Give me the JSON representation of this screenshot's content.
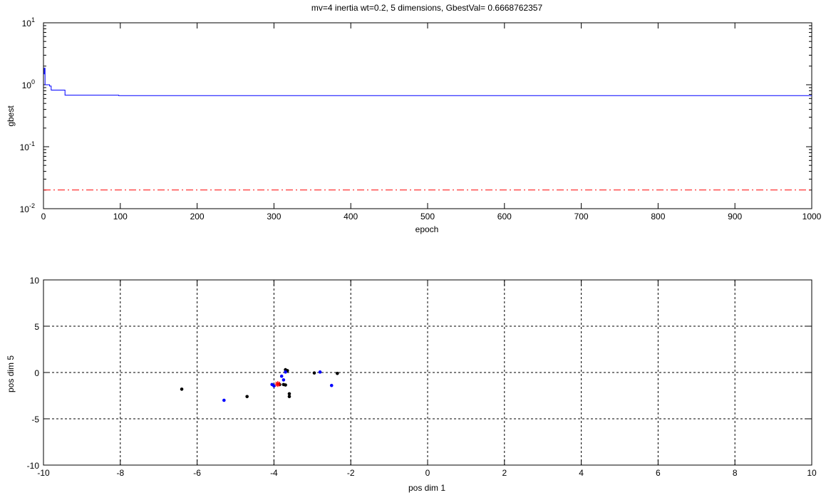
{
  "chart_data": [
    {
      "type": "line",
      "title": "mv=4 inertia wt=0.2, 5 dimensions, GbestVal= 0.6668762357",
      "xlabel": "epoch",
      "ylabel": "gbest",
      "xlim": [
        0,
        1000
      ],
      "ylim": [
        0.01,
        10
      ],
      "yscale": "log",
      "grid": false,
      "x_ticks": [
        0,
        100,
        200,
        300,
        400,
        500,
        600,
        700,
        800,
        900,
        1000
      ],
      "y_ticks": [
        {
          "value": 0.01,
          "base": "10",
          "exp": "-2"
        },
        {
          "value": 0.1,
          "base": "10",
          "exp": "-1"
        },
        {
          "value": 1,
          "base": "10",
          "exp": "0"
        },
        {
          "value": 10,
          "base": "10",
          "exp": "1"
        }
      ],
      "series": [
        {
          "color": "#0000ff",
          "style": "solid",
          "x": [
            0,
            1,
            1,
            2,
            2,
            8,
            8,
            10,
            10,
            28,
            28,
            98,
            98,
            1000
          ],
          "y": [
            1.5,
            1.5,
            1.85,
            1.85,
            1.0,
            1.0,
            0.95,
            0.95,
            0.82,
            0.82,
            0.68,
            0.68,
            0.667,
            0.667
          ]
        },
        {
          "color": "#ff0000",
          "style": "dash-dot",
          "x": [
            0,
            1000
          ],
          "y": [
            0.02,
            0.02
          ]
        }
      ]
    },
    {
      "type": "scatter",
      "title": "",
      "xlabel": "pos dim 1",
      "ylabel": "pos dim 5",
      "xlim": [
        -10,
        10
      ],
      "ylim": [
        -10,
        10
      ],
      "grid": true,
      "x_ticks": [
        -10,
        -8,
        -6,
        -4,
        -2,
        0,
        2,
        4,
        6,
        8,
        10
      ],
      "y_ticks": [
        -10,
        -5,
        0,
        5,
        10
      ],
      "series": [
        {
          "color": "#000000",
          "marker": "dot",
          "points": [
            [
              -6.4,
              -1.8
            ],
            [
              -4.7,
              -2.6
            ],
            [
              -3.7,
              0.3
            ],
            [
              -3.65,
              0.2
            ],
            [
              -3.75,
              -1.3
            ],
            [
              -3.7,
              -1.35
            ],
            [
              -3.6,
              -2.3
            ],
            [
              -3.6,
              -2.6
            ],
            [
              -2.95,
              -0.05
            ],
            [
              -2.35,
              -0.1
            ],
            [
              -3.85,
              -1.3
            ]
          ]
        },
        {
          "color": "#0000ff",
          "marker": "dot",
          "points": [
            [
              -5.3,
              -3.0
            ],
            [
              -4.05,
              -1.3
            ],
            [
              -4.0,
              -1.45
            ],
            [
              -3.8,
              -0.4
            ],
            [
              -3.75,
              -0.8
            ],
            [
              -3.7,
              0.05
            ],
            [
              -2.8,
              0.05
            ],
            [
              -2.5,
              -1.4
            ]
          ]
        },
        {
          "color": "#ff0000",
          "marker": "star",
          "points": [
            [
              -3.9,
              -1.25
            ]
          ]
        }
      ]
    }
  ]
}
